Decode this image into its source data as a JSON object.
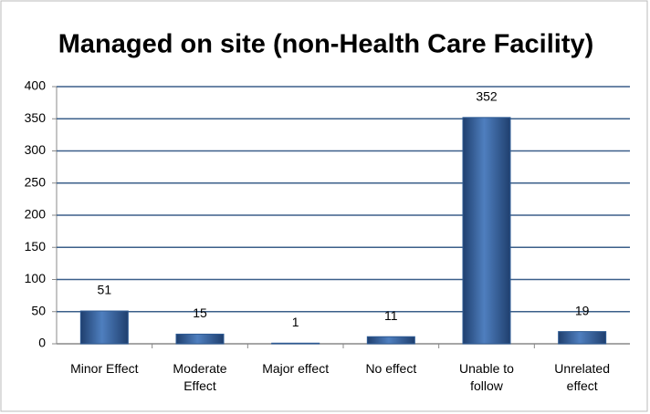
{
  "chart_data": {
    "type": "bar",
    "title": "Managed on site (non-Health Care Facility)",
    "categories": [
      "Minor Effect",
      "Moderate Effect",
      "Major effect",
      "No effect",
      "Unable to follow",
      "Unrelated effect"
    ],
    "values": [
      51,
      15,
      1,
      11,
      352,
      19
    ],
    "color": "#2e5b94",
    "ylim": [
      0,
      400
    ],
    "yticks": [
      0,
      50,
      100,
      150,
      200,
      250,
      300,
      350,
      400
    ],
    "grid": true
  }
}
